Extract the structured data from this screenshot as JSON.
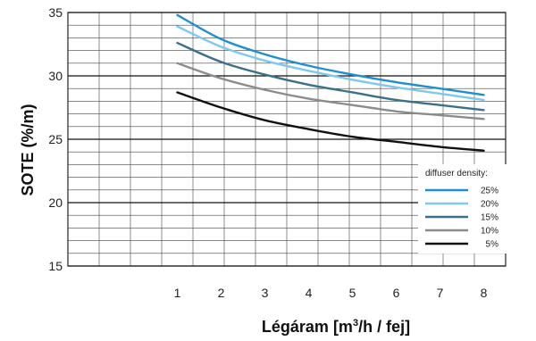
{
  "chart_data": {
    "type": "line",
    "title": "",
    "xlabel_parts": [
      "Légáram [m",
      "3",
      "/h / fej]"
    ],
    "ylabel": "SOTE (%/m)",
    "xlim": [
      -1.5,
      8.5
    ],
    "ylim": [
      15,
      35
    ],
    "x_ticks": [
      1,
      2,
      3,
      4,
      5,
      6,
      7,
      8
    ],
    "y_ticks": [
      15,
      20,
      25,
      30,
      35
    ],
    "grid": true,
    "legend": {
      "title": "diffuser density:",
      "placement": "bottom-right"
    },
    "x": [
      1,
      2,
      3,
      4,
      5,
      6,
      7,
      8
    ],
    "series": [
      {
        "name": "25%",
        "color": "#1e8fd0",
        "values": [
          34.8,
          32.9,
          31.7,
          30.8,
          30.1,
          29.5,
          29.0,
          28.5
        ]
      },
      {
        "name": "20%",
        "color": "#7ec8ef",
        "values": [
          33.9,
          32.3,
          31.2,
          30.4,
          29.7,
          29.1,
          28.6,
          28.1
        ]
      },
      {
        "name": "15%",
        "color": "#3a6f8d",
        "values": [
          32.6,
          31.1,
          30.1,
          29.3,
          28.7,
          28.1,
          27.7,
          27.3
        ]
      },
      {
        "name": "10%",
        "color": "#8c8c8c",
        "values": [
          31.0,
          29.8,
          28.9,
          28.2,
          27.7,
          27.2,
          26.9,
          26.6
        ]
      },
      {
        "name": "5%",
        "color": "#111111",
        "values": [
          28.7,
          27.5,
          26.5,
          25.8,
          25.2,
          24.8,
          24.4,
          24.1
        ]
      }
    ]
  }
}
